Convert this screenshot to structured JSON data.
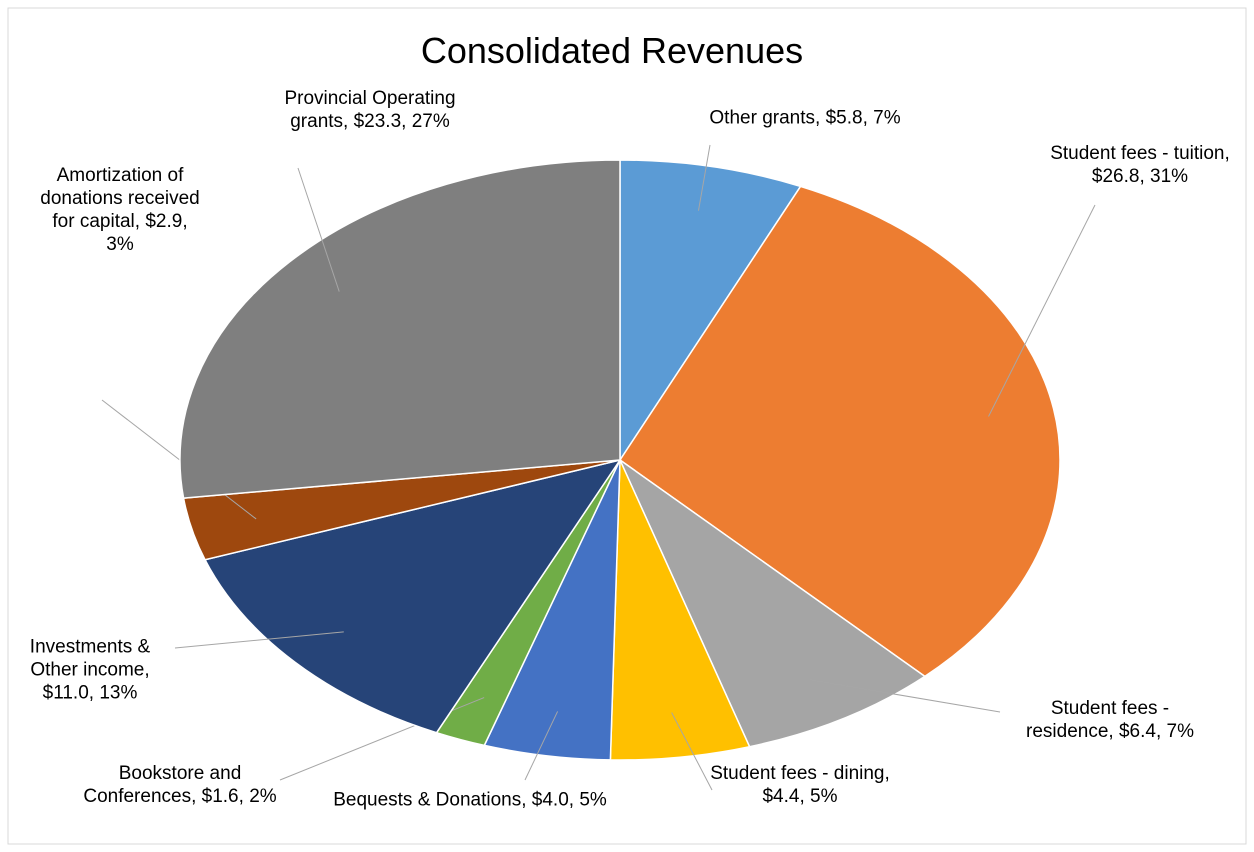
{
  "chart_data": {
    "type": "pie",
    "title": "Consolidated Revenues",
    "categories": [
      "Other grants",
      "Student fees - tuition",
      "Student fees - residence",
      "Student fees - dining",
      "Bequests & Donations",
      "Bookstore and Conferences",
      "Investments & Other income",
      "Amortization of donations received for capital",
      "Provincial Operating grants"
    ],
    "values": [
      5.8,
      26.8,
      6.4,
      4.4,
      4.0,
      1.6,
      11.0,
      2.9,
      23.3
    ],
    "value_labels": [
      "$5.8",
      "$26.8",
      "$6.4",
      "$4.4",
      "$4.0",
      "$1.6",
      "$11.0",
      "$2.9",
      "$23.3"
    ],
    "percents": [
      7,
      31,
      7,
      5,
      5,
      2,
      13,
      3,
      27
    ],
    "percent_labels": [
      "7%",
      "31%",
      "7%",
      "5%",
      "5%",
      "2%",
      "13%",
      "3%",
      "27%"
    ],
    "label_separator": ",",
    "colors": [
      "#5b9bd5",
      "#ed7d31",
      "#a5a5a5",
      "#ffc000",
      "#4472c4",
      "#70ad47",
      "#264478",
      "#9e480e",
      "#7f7f7f"
    ]
  }
}
